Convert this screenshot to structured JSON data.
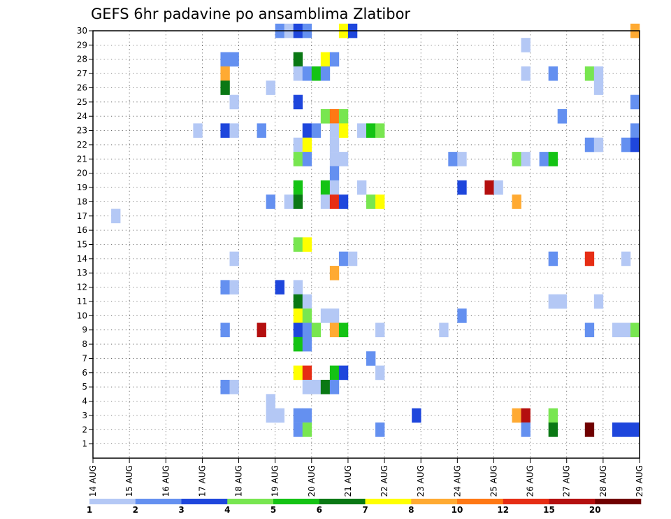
{
  "chart_data": {
    "type": "heatmap",
    "title": "GEFS 6hr padavine po ansamblima Zlatibor",
    "xlabel": "",
    "ylabel": "",
    "x_ticks": [
      "14 AUG",
      "15 AUG",
      "16 AUG",
      "17 AUG",
      "18 AUG",
      "19 AUG",
      "20 AUG",
      "21 AUG",
      "22 AUG",
      "23 AUG",
      "24 AUG",
      "25 AUG",
      "26 AUG",
      "27 AUG",
      "28 AUG",
      "29 AUG"
    ],
    "y_ticks": [
      1,
      2,
      3,
      4,
      5,
      6,
      7,
      8,
      9,
      10,
      11,
      12,
      13,
      14,
      15,
      16,
      17,
      18,
      19,
      20,
      21,
      22,
      23,
      24,
      25,
      26,
      27,
      28,
      29,
      30
    ],
    "x_range": [
      "14 AUG 00Z",
      "29 AUG 00Z"
    ],
    "y_range": [
      0,
      30
    ],
    "grid": true,
    "time_step_hours": 6,
    "legend": {
      "placement": "bottom",
      "labels": [
        "1",
        "2",
        "3",
        "4",
        "5",
        "6",
        "7",
        "8",
        "10",
        "12",
        "15",
        "20"
      ],
      "colors": [
        "#b4c8f5",
        "#6490f0",
        "#1e46dc",
        "#78e650",
        "#14c314",
        "#0a7814",
        "#ffff00",
        "#ffaa32",
        "#ff7814",
        "#e62d14",
        "#b40f0f",
        "#700000"
      ]
    },
    "cells": [
      {
        "member": 30,
        "time": "19 AUG 00Z",
        "bin": 2
      },
      {
        "member": 30,
        "time": "19 AUG 06Z",
        "bin": 1
      },
      {
        "member": 30,
        "time": "19 AUG 12Z",
        "bin": 3
      },
      {
        "member": 30,
        "time": "19 AUG 18Z",
        "bin": 2
      },
      {
        "member": 30,
        "time": "20 AUG 18Z",
        "bin": 7
      },
      {
        "member": 30,
        "time": "21 AUG 00Z",
        "bin": 3
      },
      {
        "member": 30,
        "time": "28 AUG 18Z",
        "bin": 8
      },
      {
        "member": 29,
        "time": "25 AUG 18Z",
        "bin": 1
      },
      {
        "member": 28,
        "time": "17 AUG 12Z",
        "bin": 2
      },
      {
        "member": 28,
        "time": "17 AUG 18Z",
        "bin": 2
      },
      {
        "member": 28,
        "time": "19 AUG 12Z",
        "bin": 6
      },
      {
        "member": 28,
        "time": "20 AUG 06Z",
        "bin": 7
      },
      {
        "member": 28,
        "time": "20 AUG 12Z",
        "bin": 2
      },
      {
        "member": 27,
        "time": "17 AUG 12Z",
        "bin": 8
      },
      {
        "member": 27,
        "time": "19 AUG 12Z",
        "bin": 1
      },
      {
        "member": 27,
        "time": "19 AUG 18Z",
        "bin": 2
      },
      {
        "member": 27,
        "time": "20 AUG 00Z",
        "bin": 5
      },
      {
        "member": 27,
        "time": "20 AUG 06Z",
        "bin": 2
      },
      {
        "member": 27,
        "time": "25 AUG 18Z",
        "bin": 1
      },
      {
        "member": 27,
        "time": "26 AUG 12Z",
        "bin": 2
      },
      {
        "member": 27,
        "time": "27 AUG 12Z",
        "bin": 4
      },
      {
        "member": 27,
        "time": "27 AUG 18Z",
        "bin": 1
      },
      {
        "member": 26,
        "time": "17 AUG 12Z",
        "bin": 6
      },
      {
        "member": 26,
        "time": "18 AUG 18Z",
        "bin": 1
      },
      {
        "member": 26,
        "time": "27 AUG 18Z",
        "bin": 1
      },
      {
        "member": 25,
        "time": "17 AUG 18Z",
        "bin": 1
      },
      {
        "member": 25,
        "time": "19 AUG 12Z",
        "bin": 3
      },
      {
        "member": 25,
        "time": "28 AUG 18Z",
        "bin": 2
      },
      {
        "member": 24,
        "time": "20 AUG 06Z",
        "bin": 4
      },
      {
        "member": 24,
        "time": "20 AUG 12Z",
        "bin": 9
      },
      {
        "member": 24,
        "time": "20 AUG 18Z",
        "bin": 4
      },
      {
        "member": 24,
        "time": "26 AUG 18Z",
        "bin": 2
      },
      {
        "member": 23,
        "time": "16 AUG 18Z",
        "bin": 1
      },
      {
        "member": 23,
        "time": "17 AUG 12Z",
        "bin": 3
      },
      {
        "member": 23,
        "time": "17 AUG 18Z",
        "bin": 1
      },
      {
        "member": 23,
        "time": "18 AUG 12Z",
        "bin": 2
      },
      {
        "member": 23,
        "time": "19 AUG 18Z",
        "bin": 3
      },
      {
        "member": 23,
        "time": "20 AUG 00Z",
        "bin": 2
      },
      {
        "member": 23,
        "time": "20 AUG 12Z",
        "bin": 1
      },
      {
        "member": 23,
        "time": "20 AUG 18Z",
        "bin": 7
      },
      {
        "member": 23,
        "time": "21 AUG 06Z",
        "bin": 1
      },
      {
        "member": 23,
        "time": "21 AUG 12Z",
        "bin": 5
      },
      {
        "member": 23,
        "time": "21 AUG 18Z",
        "bin": 4
      },
      {
        "member": 23,
        "time": "28 AUG 18Z",
        "bin": 2
      },
      {
        "member": 22,
        "time": "19 AUG 12Z",
        "bin": 1
      },
      {
        "member": 22,
        "time": "19 AUG 18Z",
        "bin": 7
      },
      {
        "member": 22,
        "time": "20 AUG 12Z",
        "bin": 1
      },
      {
        "member": 22,
        "time": "27 AUG 12Z",
        "bin": 2
      },
      {
        "member": 22,
        "time": "27 AUG 18Z",
        "bin": 1
      },
      {
        "member": 22,
        "time": "28 AUG 12Z",
        "bin": 2
      },
      {
        "member": 22,
        "time": "28 AUG 18Z",
        "bin": 3
      },
      {
        "member": 21,
        "time": "19 AUG 12Z",
        "bin": 4
      },
      {
        "member": 21,
        "time": "19 AUG 18Z",
        "bin": 2
      },
      {
        "member": 21,
        "time": "20 AUG 12Z",
        "bin": 1
      },
      {
        "member": 21,
        "time": "20 AUG 18Z",
        "bin": 1
      },
      {
        "member": 21,
        "time": "23 AUG 18Z",
        "bin": 2
      },
      {
        "member": 21,
        "time": "24 AUG 00Z",
        "bin": 1
      },
      {
        "member": 21,
        "time": "25 AUG 12Z",
        "bin": 4
      },
      {
        "member": 21,
        "time": "25 AUG 18Z",
        "bin": 1
      },
      {
        "member": 21,
        "time": "26 AUG 06Z",
        "bin": 2
      },
      {
        "member": 21,
        "time": "26 AUG 12Z",
        "bin": 5
      },
      {
        "member": 20,
        "time": "20 AUG 12Z",
        "bin": 2
      },
      {
        "member": 19,
        "time": "19 AUG 12Z",
        "bin": 5
      },
      {
        "member": 19,
        "time": "20 AUG 06Z",
        "bin": 5
      },
      {
        "member": 19,
        "time": "20 AUG 12Z",
        "bin": 1
      },
      {
        "member": 19,
        "time": "21 AUG 06Z",
        "bin": 1
      },
      {
        "member": 19,
        "time": "24 AUG 00Z",
        "bin": 3
      },
      {
        "member": 19,
        "time": "24 AUG 18Z",
        "bin": 11
      },
      {
        "member": 19,
        "time": "25 AUG 00Z",
        "bin": 1
      },
      {
        "member": 18,
        "time": "18 AUG 18Z",
        "bin": 2
      },
      {
        "member": 18,
        "time": "19 AUG 06Z",
        "bin": 1
      },
      {
        "member": 18,
        "time": "19 AUG 12Z",
        "bin": 6
      },
      {
        "member": 18,
        "time": "20 AUG 06Z",
        "bin": 1
      },
      {
        "member": 18,
        "time": "20 AUG 12Z",
        "bin": 10
      },
      {
        "member": 18,
        "time": "20 AUG 18Z",
        "bin": 3
      },
      {
        "member": 18,
        "time": "21 AUG 12Z",
        "bin": 4
      },
      {
        "member": 18,
        "time": "21 AUG 18Z",
        "bin": 7
      },
      {
        "member": 18,
        "time": "25 AUG 12Z",
        "bin": 8
      },
      {
        "member": 17,
        "time": "14 AUG 12Z",
        "bin": 1
      },
      {
        "member": 15,
        "time": "19 AUG 12Z",
        "bin": 4
      },
      {
        "member": 15,
        "time": "19 AUG 18Z",
        "bin": 7
      },
      {
        "member": 14,
        "time": "17 AUG 18Z",
        "bin": 1
      },
      {
        "member": 14,
        "time": "20 AUG 18Z",
        "bin": 2
      },
      {
        "member": 14,
        "time": "21 AUG 00Z",
        "bin": 1
      },
      {
        "member": 14,
        "time": "26 AUG 12Z",
        "bin": 2
      },
      {
        "member": 14,
        "time": "27 AUG 12Z",
        "bin": 10
      },
      {
        "member": 14,
        "time": "28 AUG 12Z",
        "bin": 1
      },
      {
        "member": 13,
        "time": "20 AUG 12Z",
        "bin": 8
      },
      {
        "member": 12,
        "time": "17 AUG 12Z",
        "bin": 2
      },
      {
        "member": 12,
        "time": "17 AUG 18Z",
        "bin": 1
      },
      {
        "member": 12,
        "time": "19 AUG 00Z",
        "bin": 3
      },
      {
        "member": 12,
        "time": "19 AUG 12Z",
        "bin": 1
      },
      {
        "member": 11,
        "time": "19 AUG 12Z",
        "bin": 6
      },
      {
        "member": 11,
        "time": "19 AUG 18Z",
        "bin": 1
      },
      {
        "member": 11,
        "time": "26 AUG 12Z",
        "bin": 1
      },
      {
        "member": 11,
        "time": "26 AUG 18Z",
        "bin": 1
      },
      {
        "member": 11,
        "time": "27 AUG 18Z",
        "bin": 1
      },
      {
        "member": 10,
        "time": "19 AUG 12Z",
        "bin": 7
      },
      {
        "member": 10,
        "time": "19 AUG 18Z",
        "bin": 4
      },
      {
        "member": 10,
        "time": "20 AUG 06Z",
        "bin": 1
      },
      {
        "member": 10,
        "time": "20 AUG 12Z",
        "bin": 1
      },
      {
        "member": 10,
        "time": "24 AUG 00Z",
        "bin": 2
      },
      {
        "member": 9,
        "time": "17 AUG 12Z",
        "bin": 2
      },
      {
        "member": 9,
        "time": "18 AUG 12Z",
        "bin": 11
      },
      {
        "member": 9,
        "time": "19 AUG 12Z",
        "bin": 3
      },
      {
        "member": 9,
        "time": "19 AUG 18Z",
        "bin": 2
      },
      {
        "member": 9,
        "time": "20 AUG 00Z",
        "bin": 4
      },
      {
        "member": 9,
        "time": "20 AUG 12Z",
        "bin": 8
      },
      {
        "member": 9,
        "time": "20 AUG 18Z",
        "bin": 5
      },
      {
        "member": 9,
        "time": "21 AUG 18Z",
        "bin": 1
      },
      {
        "member": 9,
        "time": "23 AUG 12Z",
        "bin": 1
      },
      {
        "member": 9,
        "time": "27 AUG 12Z",
        "bin": 2
      },
      {
        "member": 9,
        "time": "28 AUG 06Z",
        "bin": 1
      },
      {
        "member": 9,
        "time": "28 AUG 12Z",
        "bin": 1
      },
      {
        "member": 9,
        "time": "28 AUG 18Z",
        "bin": 4
      },
      {
        "member": 8,
        "time": "19 AUG 12Z",
        "bin": 5
      },
      {
        "member": 8,
        "time": "19 AUG 18Z",
        "bin": 2
      },
      {
        "member": 7,
        "time": "21 AUG 12Z",
        "bin": 2
      },
      {
        "member": 6,
        "time": "19 AUG 12Z",
        "bin": 7
      },
      {
        "member": 6,
        "time": "19 AUG 18Z",
        "bin": 10
      },
      {
        "member": 6,
        "time": "20 AUG 12Z",
        "bin": 5
      },
      {
        "member": 6,
        "time": "20 AUG 18Z",
        "bin": 3
      },
      {
        "member": 6,
        "time": "21 AUG 18Z",
        "bin": 1
      },
      {
        "member": 5,
        "time": "17 AUG 12Z",
        "bin": 2
      },
      {
        "member": 5,
        "time": "17 AUG 18Z",
        "bin": 1
      },
      {
        "member": 5,
        "time": "19 AUG 18Z",
        "bin": 1
      },
      {
        "member": 5,
        "time": "20 AUG 00Z",
        "bin": 1
      },
      {
        "member": 5,
        "time": "20 AUG 06Z",
        "bin": 6
      },
      {
        "member": 5,
        "time": "20 AUG 12Z",
        "bin": 2
      },
      {
        "member": 4,
        "time": "18 AUG 18Z",
        "bin": 1
      },
      {
        "member": 3,
        "time": "18 AUG 18Z",
        "bin": 1
      },
      {
        "member": 3,
        "time": "19 AUG 00Z",
        "bin": 1
      },
      {
        "member": 3,
        "time": "19 AUG 12Z",
        "bin": 2
      },
      {
        "member": 3,
        "time": "19 AUG 18Z",
        "bin": 2
      },
      {
        "member": 3,
        "time": "22 AUG 18Z",
        "bin": 3
      },
      {
        "member": 3,
        "time": "25 AUG 12Z",
        "bin": 8
      },
      {
        "member": 3,
        "time": "25 AUG 18Z",
        "bin": 11
      },
      {
        "member": 3,
        "time": "26 AUG 12Z",
        "bin": 4
      },
      {
        "member": 2,
        "time": "19 AUG 12Z",
        "bin": 2
      },
      {
        "member": 2,
        "time": "19 AUG 18Z",
        "bin": 4
      },
      {
        "member": 2,
        "time": "21 AUG 18Z",
        "bin": 2
      },
      {
        "member": 2,
        "time": "25 AUG 18Z",
        "bin": 2
      },
      {
        "member": 2,
        "time": "26 AUG 12Z",
        "bin": 6
      },
      {
        "member": 2,
        "time": "27 AUG 12Z",
        "bin": 12
      },
      {
        "member": 2,
        "time": "28 AUG 06Z",
        "bin": 3
      },
      {
        "member": 2,
        "time": "28 AUG 12Z",
        "bin": 3
      },
      {
        "member": 2,
        "time": "28 AUG 18Z",
        "bin": 3
      }
    ]
  }
}
